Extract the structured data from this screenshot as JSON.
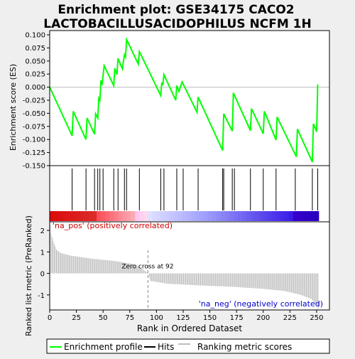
{
  "title_line1": "Enrichment plot: GSE34175 CACO2",
  "title_line2": "LACTOBACILLUSACIDOPHILUS NCFM 1H",
  "colors": {
    "background": "#efefef",
    "panel": "#ffffff",
    "es_line": "#00ff00",
    "hits": "#000000",
    "metric": "#bebebe"
  },
  "chart_data": [
    {
      "type": "line",
      "panel": "enrichment",
      "ylabel": "Enrichment score (ES)",
      "xlim": [
        0,
        262
      ],
      "ylim": [
        -0.15,
        0.1
      ],
      "yticks": [
        {
          "v": 0.1,
          "label": "0.100"
        },
        {
          "v": 0.075,
          "label": "0.075"
        },
        {
          "v": 0.05,
          "label": "0.050"
        },
        {
          "v": 0.025,
          "label": "0.025"
        },
        {
          "v": 0.0,
          "label": "0.000"
        },
        {
          "v": -0.025,
          "label": "-0.025"
        },
        {
          "v": -0.05,
          "label": "-0.050"
        },
        {
          "v": -0.075,
          "label": "-0.075"
        },
        {
          "v": -0.1,
          "label": "-0.100"
        },
        {
          "v": -0.125,
          "label": "-0.125"
        },
        {
          "v": -0.15,
          "label": "-0.150"
        }
      ],
      "es_points": [
        [
          0,
          0.0
        ],
        [
          21,
          -0.093
        ],
        [
          22,
          -0.046
        ],
        [
          34,
          -0.1
        ],
        [
          35,
          -0.059
        ],
        [
          42,
          -0.09
        ],
        [
          43,
          -0.051
        ],
        [
          45,
          -0.059
        ],
        [
          46,
          -0.021
        ],
        [
          47,
          -0.025
        ],
        [
          48,
          0.013
        ],
        [
          49,
          0.004
        ],
        [
          51,
          0.041
        ],
        [
          60,
          0.003
        ],
        [
          61,
          0.036
        ],
        [
          63,
          0.024
        ],
        [
          64,
          0.055
        ],
        [
          68,
          0.035
        ],
        [
          70,
          0.062
        ],
        [
          71,
          0.058
        ],
        [
          72,
          0.091
        ],
        [
          83,
          0.044
        ],
        [
          84,
          0.068
        ],
        [
          104,
          -0.016
        ],
        [
          105,
          0.009
        ],
        [
          106,
          0.004
        ],
        [
          107,
          0.024
        ],
        [
          118,
          -0.025
        ],
        [
          119,
          0.003
        ],
        [
          121,
          -0.008
        ],
        [
          124,
          0.01
        ],
        [
          138,
          -0.048
        ],
        [
          139,
          -0.019
        ],
        [
          162,
          -0.121
        ],
        [
          163,
          -0.051
        ],
        [
          171,
          -0.084
        ],
        [
          172,
          -0.011
        ],
        [
          188,
          -0.083
        ],
        [
          189,
          -0.041
        ],
        [
          200,
          -0.089
        ],
        [
          201,
          -0.046
        ],
        [
          212,
          -0.101
        ],
        [
          213,
          -0.057
        ],
        [
          231,
          -0.133
        ],
        [
          232,
          -0.08
        ],
        [
          246,
          -0.143
        ],
        [
          247,
          -0.07
        ],
        [
          250,
          -0.085
        ],
        [
          251,
          0.005
        ]
      ]
    },
    {
      "type": "bar",
      "panel": "hits",
      "hit_positions": [
        21,
        34,
        42,
        45,
        47,
        50,
        60,
        64,
        70,
        72,
        84,
        104,
        107,
        119,
        125,
        139,
        162,
        163,
        171,
        173,
        188,
        200,
        212,
        230,
        246,
        251
      ]
    },
    {
      "type": "area",
      "panel": "ranking_metric",
      "ylabel": "Ranked list metric (PreRanked)",
      "xlabel": "Rank in Ordered Dataset",
      "xlim": [
        0,
        262
      ],
      "ylim": [
        -1.7,
        2.4
      ],
      "yticks": [
        2,
        1,
        0,
        -1
      ],
      "xticks": [
        0,
        25,
        50,
        75,
        100,
        125,
        150,
        175,
        200,
        225,
        250
      ],
      "zero_cross": 92,
      "zero_cross_label": "Zero cross at 92",
      "pos_label": "'na_pos' (positively correlated)",
      "neg_label": "'na_neg' (negatively correlated)",
      "metric_anchors": [
        [
          0,
          2.25
        ],
        [
          1,
          1.85
        ],
        [
          3,
          1.5
        ],
        [
          6,
          1.1
        ],
        [
          10,
          0.95
        ],
        [
          20,
          0.82
        ],
        [
          40,
          0.68
        ],
        [
          60,
          0.58
        ],
        [
          80,
          0.42
        ],
        [
          91,
          0.05
        ],
        [
          92,
          -0.02
        ],
        [
          94,
          -0.35
        ],
        [
          110,
          -0.48
        ],
        [
          140,
          -0.56
        ],
        [
          170,
          -0.62
        ],
        [
          200,
          -0.72
        ],
        [
          220,
          -0.82
        ],
        [
          235,
          -1.0
        ],
        [
          245,
          -1.2
        ],
        [
          250,
          -1.5
        ],
        [
          251,
          -1.65
        ]
      ]
    }
  ],
  "legend": [
    {
      "name": "Enrichment profile",
      "color": "#00ff00"
    },
    {
      "name": "Hits",
      "color": "#000000"
    },
    {
      "name": "Ranking metric scores",
      "color": "#bebebe"
    }
  ]
}
